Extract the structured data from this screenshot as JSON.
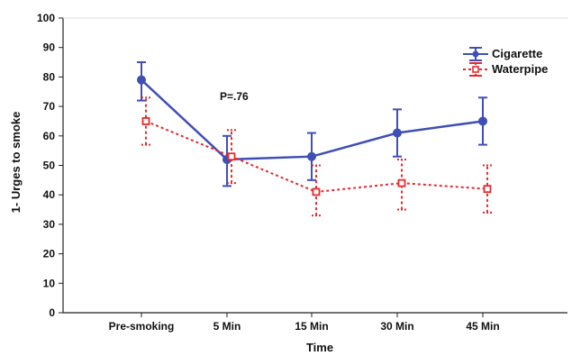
{
  "chart_data": {
    "type": "line",
    "xlabel": "Time",
    "ylabel": "1- Urges to smoke",
    "categories": [
      "Pre-smoking",
      "5 Min",
      "15 Min",
      "30 Min",
      "45 Min"
    ],
    "ylim": [
      0,
      100
    ],
    "yticks": [
      0,
      10,
      20,
      30,
      40,
      50,
      60,
      70,
      80,
      90,
      100
    ],
    "grid": false,
    "legend_position": "top-right",
    "annotation": "P=.76",
    "series": [
      {
        "name": "Cigarette",
        "color": "#3f4fb5",
        "line_style": "solid",
        "marker": "filled-circle",
        "values": [
          79,
          52,
          53,
          61,
          65
        ],
        "error_low": [
          72,
          43,
          45,
          53,
          57
        ],
        "error_high": [
          85,
          60,
          61,
          69,
          73
        ]
      },
      {
        "name": "Waterpipe",
        "color": "#e8292c",
        "line_style": "dotted",
        "marker": "open-square",
        "values": [
          65,
          53,
          41,
          44,
          42
        ],
        "error_low": [
          57,
          44,
          33,
          35,
          34
        ],
        "error_high": [
          73,
          62,
          50,
          52,
          50
        ]
      }
    ]
  }
}
